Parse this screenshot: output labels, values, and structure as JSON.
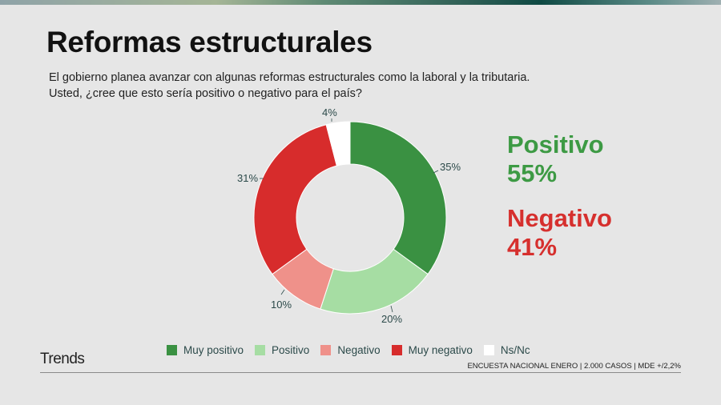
{
  "header": {
    "title": "Reformas estructurales",
    "subtitle_line1": "El gobierno planea avanzar con algunas reformas estructurales como la laboral y la tributaria.",
    "subtitle_line2": "Usted, ¿cree que esto sería positivo o negativo para el país?"
  },
  "summary": {
    "positive_label": "Positivo",
    "positive_value": "55%",
    "negative_label": "Negativo",
    "negative_value": "41%",
    "positive_color": "#3d9a44",
    "negative_color": "#d6302e"
  },
  "labels": {
    "muy_positivo": "35%",
    "positivo": "20%",
    "negativo": "10%",
    "muy_negativo": "31%",
    "nsnc": "4%"
  },
  "legend": [
    {
      "label": "Muy positivo",
      "color": "#3a9142"
    },
    {
      "label": "Positivo",
      "color": "#a6dda3"
    },
    {
      "label": "Negativo",
      "color": "#ef918a"
    },
    {
      "label": "Muy negativo",
      "color": "#d72c2c"
    },
    {
      "label": "Ns/Nc",
      "color": "#ffffff"
    }
  ],
  "footer": {
    "brand": "Trends",
    "note": "ENCUESTA NACIONAL ENERO | 2.000 CASOS | MDE +/2,2%"
  },
  "chart_data": {
    "type": "pie",
    "subtype": "donut",
    "title": "Reformas estructurales",
    "categories": [
      "Muy positivo",
      "Positivo",
      "Negativo",
      "Muy negativo",
      "Ns/Nc"
    ],
    "values": [
      35,
      20,
      10,
      31,
      4
    ],
    "unit": "%",
    "colors": [
      "#3a9142",
      "#a6dda3",
      "#ef918a",
      "#d72c2c",
      "#ffffff"
    ],
    "start_angle": "12 o'clock, clockwise",
    "legend_position": "bottom",
    "annotations": [
      "Positivo 55%",
      "Negativo 41%"
    ]
  }
}
